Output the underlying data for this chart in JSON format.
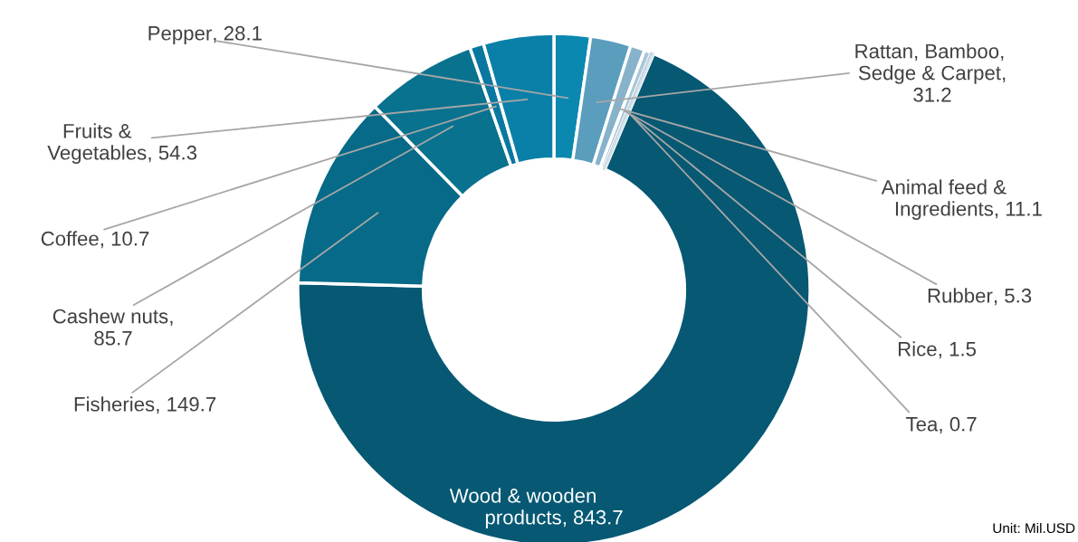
{
  "chart_data": {
    "type": "donut",
    "categories": [
      "Pepper",
      "Rattan, Bamboo,\nSedge & Carpet",
      "Animal feed &\nIngredients",
      "Rubber",
      "Rice",
      "Tea",
      "Wood & wooden\nproducts",
      "Fisheries",
      "Cashew nuts",
      "Coffee",
      "Fruits &\nVegetables"
    ],
    "values": [
      28.1,
      31.2,
      11.1,
      5.3,
      1.5,
      0.7,
      843.7,
      149.7,
      85.7,
      10.7,
      54.3
    ],
    "colors": [
      "#0a88b0",
      "#5b9dbd",
      "#87b2cc",
      "#a9c6d8",
      "#c0d4e0",
      "#d8e4ec",
      "#065873",
      "#066a88",
      "#08728f",
      "#0878a0",
      "#0a80a8"
    ],
    "value_labels": [
      ", 28.1",
      ",\n31.2",
      ", 11.1",
      ", 5.3",
      ", 1.5",
      ", 0.7",
      ", 843.7",
      ", 149.7",
      ",\n85.7",
      ", 10.7",
      ", 54.3"
    ],
    "annotations": [
      "Unit: Mil.USD"
    ]
  }
}
